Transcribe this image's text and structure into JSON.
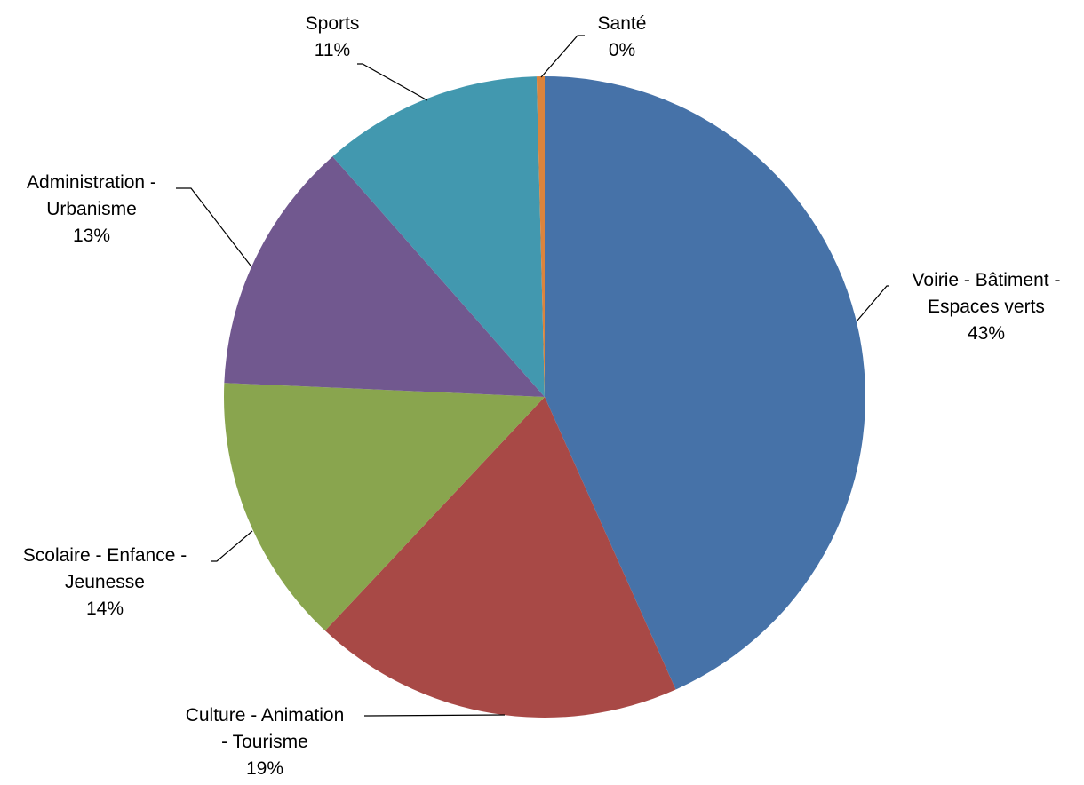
{
  "chart_data": {
    "type": "pie",
    "title": "",
    "slices": [
      {
        "name": "Voirie - Bâtiment - Espaces verts",
        "label_lines": [
          "Voirie - Bâtiment -",
          "Espaces verts"
        ],
        "percent_label": "43%",
        "value": 43.3,
        "color": "#4672a8"
      },
      {
        "name": "Culture - Animation - Tourisme",
        "label_lines": [
          "Culture - Animation",
          "- Tourisme"
        ],
        "percent_label": "19%",
        "value": 18.7,
        "color": "#a84946"
      },
      {
        "name": "Scolaire - Enfance - Jeunesse",
        "label_lines": [
          "Scolaire - Enfance -",
          "Jeunesse"
        ],
        "percent_label": "14%",
        "value": 13.7,
        "color": "#89a54e"
      },
      {
        "name": "Administration - Urbanisme",
        "label_lines": [
          "Administration -",
          "Urbanisme"
        ],
        "percent_label": "13%",
        "value": 12.8,
        "color": "#71588f"
      },
      {
        "name": "Sports",
        "label_lines": [
          "Sports"
        ],
        "percent_label": "11%",
        "value": 11.1,
        "color": "#4298af"
      },
      {
        "name": "Santé",
        "label_lines": [
          "Santé"
        ],
        "percent_label": "0%",
        "value": 0.4,
        "color": "#db843d"
      }
    ]
  }
}
